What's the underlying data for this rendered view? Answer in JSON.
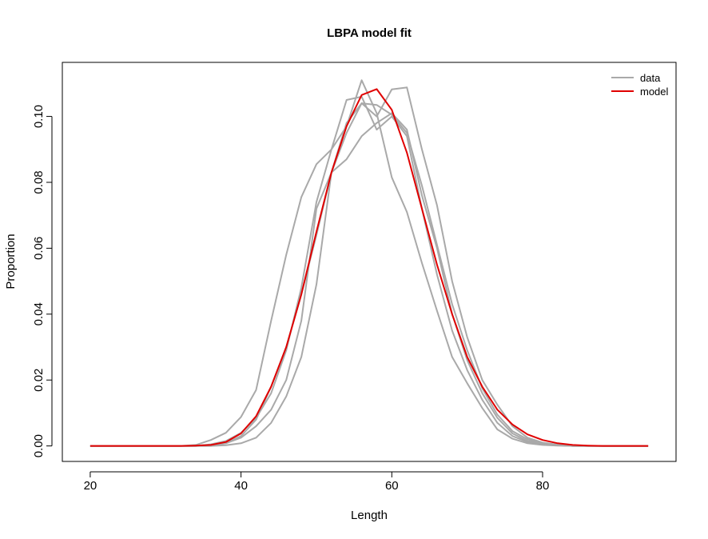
{
  "chart_data": {
    "type": "line",
    "title": "LBPA model fit",
    "xlabel": "Length",
    "ylabel": "Proportion",
    "xlim": [
      16.3,
      97.7
    ],
    "ylim": [
      -0.0047,
      0.1164
    ],
    "xticks": [
      20,
      40,
      60,
      80
    ],
    "xtick_labels": [
      "20",
      "40",
      "60",
      "80"
    ],
    "yticks": [
      0.0,
      0.02,
      0.04,
      0.06,
      0.08,
      0.1
    ],
    "ytick_labels": [
      "0.00",
      "0.02",
      "0.04",
      "0.06",
      "0.08",
      "0.10"
    ],
    "legend": {
      "position": "top-right",
      "entries": [
        {
          "label": "data",
          "color": "#A9A9A9"
        },
        {
          "label": "model",
          "color": "#E00000"
        }
      ]
    },
    "colors": {
      "data": "#A9A9A9",
      "model": "#E00000"
    },
    "x": [
      20,
      22,
      24,
      26,
      28,
      30,
      32,
      34,
      36,
      38,
      40,
      42,
      44,
      46,
      48,
      50,
      52,
      54,
      56,
      58,
      60,
      62,
      64,
      66,
      68,
      70,
      72,
      74,
      76,
      78,
      80,
      82,
      84,
      86,
      88,
      90,
      92,
      94
    ],
    "series": [
      {
        "name": "data",
        "values": [
          0,
          0,
          0,
          0,
          0,
          0,
          0,
          0.0003,
          0.0018,
          0.004,
          0.0088,
          0.017,
          0.038,
          0.058,
          0.0755,
          0.0855,
          0.09,
          0.097,
          0.111,
          0.101,
          0.0815,
          0.071,
          0.0555,
          0.041,
          0.027,
          0.019,
          0.0115,
          0.005,
          0.0022,
          0.0008,
          0.0003,
          0.0001,
          0,
          0,
          0,
          0,
          0,
          0
        ]
      },
      {
        "name": "data",
        "values": [
          0,
          0,
          0,
          0,
          0,
          0,
          0,
          0,
          0.0005,
          0.0015,
          0.004,
          0.0085,
          0.016,
          0.029,
          0.048,
          0.074,
          0.09,
          0.105,
          0.106,
          0.096,
          0.1,
          0.094,
          0.072,
          0.052,
          0.035,
          0.023,
          0.014,
          0.007,
          0.003,
          0.0012,
          0.0005,
          0.0002,
          0,
          0,
          0,
          0,
          0,
          0
        ]
      },
      {
        "name": "data",
        "values": [
          0,
          0,
          0,
          0,
          0,
          0,
          0,
          0,
          0.0002,
          0.0008,
          0.0025,
          0.006,
          0.011,
          0.02,
          0.038,
          0.072,
          0.083,
          0.087,
          0.094,
          0.098,
          0.101,
          0.096,
          0.076,
          0.06,
          0.04,
          0.026,
          0.016,
          0.0085,
          0.0038,
          0.0015,
          0.0006,
          0.0002,
          0,
          0,
          0,
          0,
          0,
          0
        ]
      },
      {
        "name": "data",
        "values": [
          0,
          0,
          0,
          0,
          0,
          0,
          0,
          0,
          0,
          0.0002,
          0.0008,
          0.0025,
          0.007,
          0.015,
          0.027,
          0.049,
          0.083,
          0.095,
          0.104,
          0.1035,
          0.1005,
          0.095,
          0.079,
          0.061,
          0.043,
          0.029,
          0.0175,
          0.0095,
          0.0045,
          0.002,
          0.0008,
          0.0003,
          0,
          0,
          0,
          0,
          0,
          0
        ]
      },
      {
        "name": "data",
        "values": [
          0,
          0,
          0,
          0,
          0,
          0,
          0,
          0,
          0.0001,
          0.0008,
          0.003,
          0.008,
          0.018,
          0.03,
          0.046,
          0.064,
          0.083,
          0.098,
          0.104,
          0.1,
          0.1082,
          0.1088,
          0.09,
          0.073,
          0.05,
          0.033,
          0.02,
          0.0125,
          0.006,
          0.0025,
          0.001,
          0.0004,
          0.0001,
          0,
          0,
          0,
          0,
          0
        ]
      },
      {
        "name": "model",
        "values": [
          0,
          0,
          0,
          0,
          0,
          0,
          0,
          0.0001,
          0.0003,
          0.0012,
          0.0038,
          0.009,
          0.018,
          0.03,
          0.046,
          0.065,
          0.083,
          0.097,
          0.1065,
          0.1083,
          0.102,
          0.089,
          0.072,
          0.055,
          0.04,
          0.027,
          0.018,
          0.011,
          0.0065,
          0.0035,
          0.0018,
          0.0008,
          0.0003,
          0.0001,
          0,
          0,
          0,
          0
        ]
      }
    ]
  }
}
